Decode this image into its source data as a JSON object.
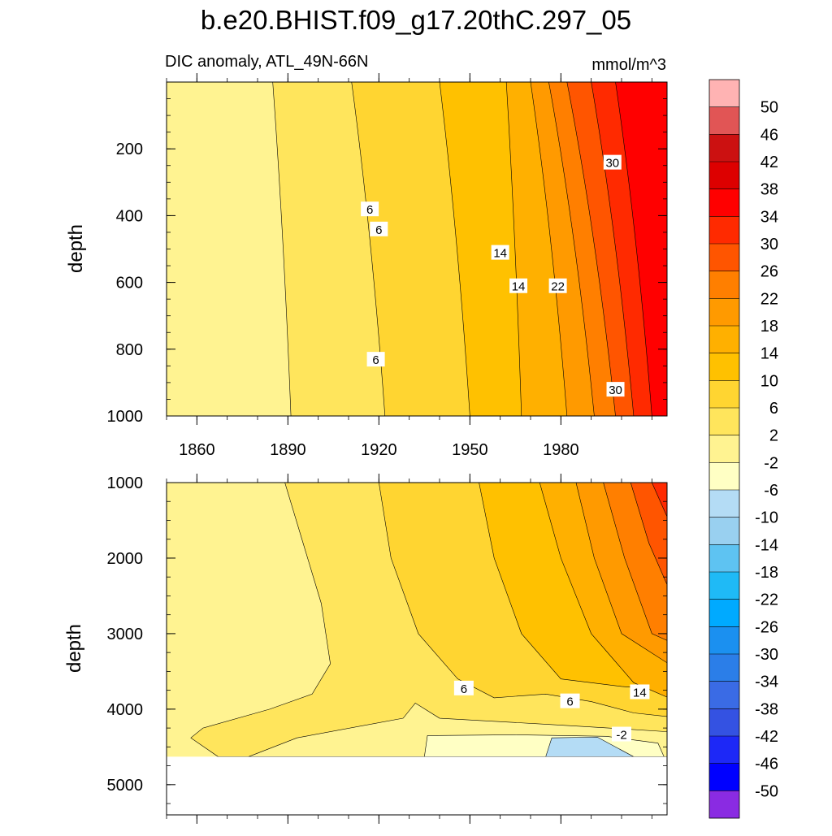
{
  "chart_data": {
    "type": "heatmap",
    "title": "b.e20.BHIST.f09_g17.20thC.297_05",
    "subtitle": "DIC anomaly, ATL_49N-66N",
    "units": "mmol/m^3",
    "colorbar": {
      "labels": [
        "50",
        "46",
        "42",
        "38",
        "34",
        "30",
        "26",
        "22",
        "18",
        "14",
        "10",
        "6",
        "2",
        "-2",
        "-6",
        "-10",
        "-14",
        "-18",
        "-22",
        "-26",
        "-30",
        "-34",
        "-38",
        "-42",
        "-46",
        "-50"
      ],
      "colors": [
        "#ffb3b3",
        "#e15555",
        "#cc1111",
        "#dd0000",
        "#ff0000",
        "#ff2a00",
        "#ff5500",
        "#ff7f00",
        "#ff9a00",
        "#ffb000",
        "#ffc100",
        "#ffd531",
        "#ffe55c",
        "#fff391",
        "#ffffc4",
        "#b4dcf5",
        "#99d0f0",
        "#5ec3f2",
        "#1fbaf6",
        "#00aaff",
        "#1b90f0",
        "#2b7ee8",
        "#3a6be5",
        "#3452e2",
        "#1d28f7",
        "#0000ff",
        "#8a2be2"
      ]
    },
    "x": {
      "label": "",
      "range": [
        1850,
        2015
      ],
      "ticks": [
        1860,
        1890,
        1920,
        1950,
        1980
      ],
      "tick_labels": [
        "1860",
        "1890",
        "1920",
        "1950",
        "1980"
      ]
    },
    "panels": [
      {
        "name": "upper",
        "ylabel": "depth",
        "ylim": [
          0,
          1000
        ],
        "ticks": [
          200,
          400,
          600,
          800,
          1000
        ],
        "tick_labels": [
          "200",
          "400",
          "600",
          "800",
          "1000"
        ],
        "boundaries_years_at_surface_and_bottom": [
          {
            "level": 2,
            "top": 1885,
            "bottom": 1891
          },
          {
            "level": 6,
            "top": 1911,
            "bottom": 1922
          },
          {
            "level": 10,
            "top": 1940,
            "bottom": 1950
          },
          {
            "level": 14,
            "top": 1962,
            "bottom": 1967
          },
          {
            "level": 18,
            "top": 1970,
            "bottom": 1982
          },
          {
            "level": 22,
            "top": 1976,
            "bottom": 1991
          },
          {
            "level": 26,
            "top": 1982,
            "bottom": 1998
          },
          {
            "level": 30,
            "top": 1990,
            "bottom": 2004
          },
          {
            "level": 34,
            "top": 1998,
            "bottom": 2010
          }
        ],
        "contour_labels": [
          {
            "text": "6",
            "year": 1917,
            "depth": 380
          },
          {
            "text": "6",
            "year": 1920,
            "depth": 440
          },
          {
            "text": "6",
            "year": 1919,
            "depth": 830
          },
          {
            "text": "14",
            "year": 1960,
            "depth": 510
          },
          {
            "text": "14",
            "year": 1966,
            "depth": 610
          },
          {
            "text": "22",
            "year": 1979,
            "depth": 610
          },
          {
            "text": "30",
            "year": 1997,
            "depth": 240
          },
          {
            "text": "30",
            "year": 1998,
            "depth": 920
          }
        ]
      },
      {
        "name": "lower",
        "ylabel": "depth",
        "ylim": [
          1000,
          5400
        ],
        "ticks": [
          1000,
          2000,
          3000,
          4000,
          5000
        ],
        "tick_labels": [
          "1000",
          "2000",
          "3000",
          "4000",
          "5000"
        ],
        "data_bottom_depth": 4630,
        "contour_labels": [
          {
            "text": "6",
            "year": 1948,
            "depth": 3720
          },
          {
            "text": "6",
            "year": 1983,
            "depth": 3890
          },
          {
            "text": "14",
            "year": 2006,
            "depth": 3770
          },
          {
            "text": "-2",
            "year": 2000,
            "depth": 4330
          }
        ]
      }
    ]
  }
}
